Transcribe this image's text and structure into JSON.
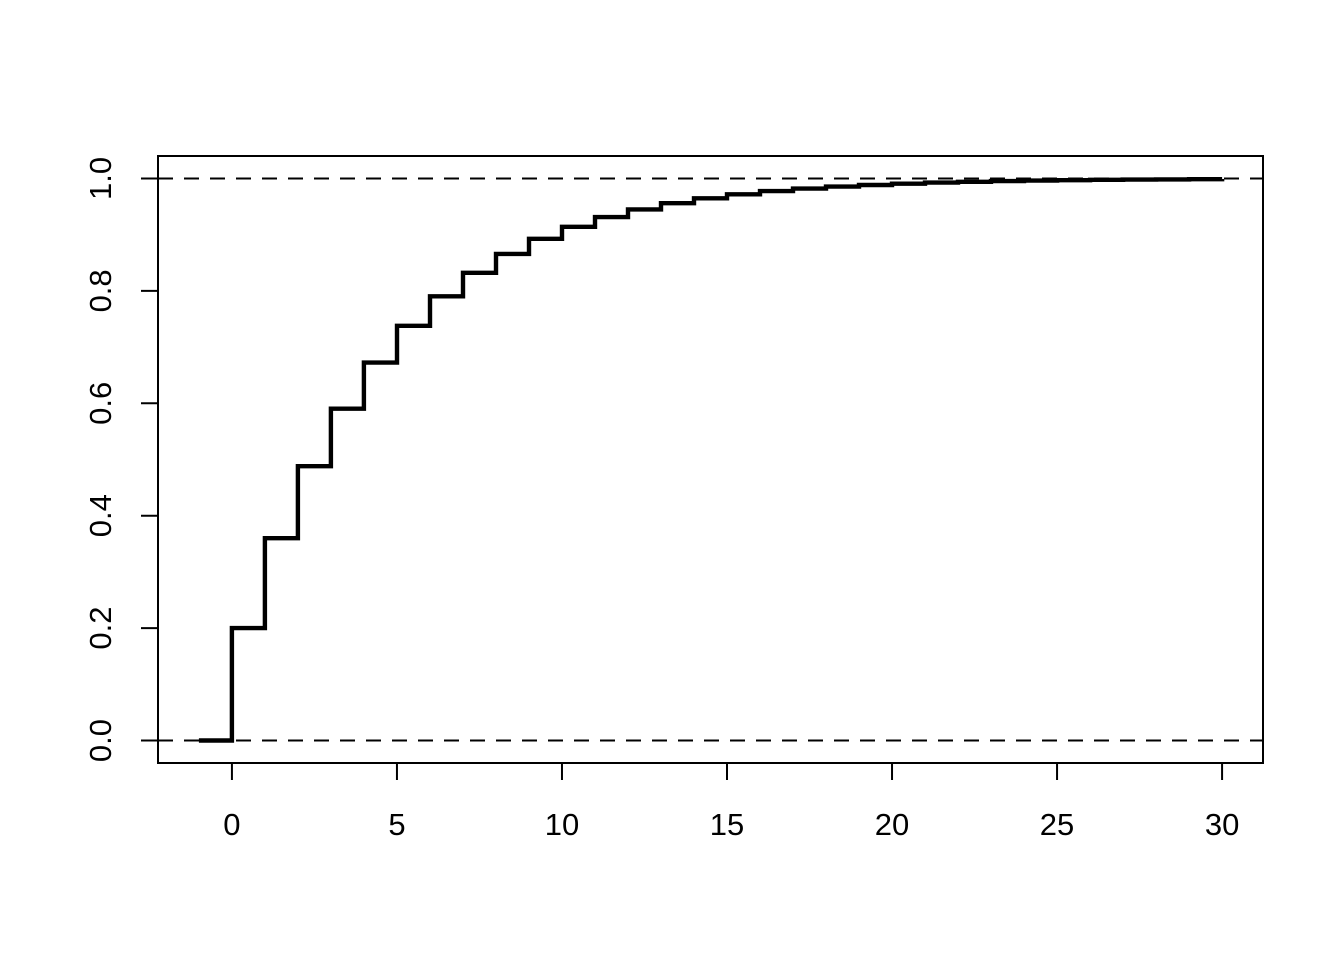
{
  "chart_data": {
    "type": "line",
    "subtype": "step_function_cdf",
    "description": "Step plot of a cumulative distribution function (geometric distribution, p = 0.2), R base graphics style",
    "title": "",
    "xlabel": "",
    "ylabel": "",
    "step_mode": "horizontal-then-vertical",
    "x": [
      -1,
      0,
      1,
      2,
      3,
      4,
      5,
      6,
      7,
      8,
      9,
      10,
      11,
      12,
      13,
      14,
      15,
      16,
      17,
      18,
      19,
      20,
      21,
      22,
      23,
      24,
      25,
      26,
      27,
      28,
      29,
      30
    ],
    "y": [
      0,
      0.2,
      0.36,
      0.488,
      0.5904,
      0.67232,
      0.737856,
      0.790285,
      0.832228,
      0.865782,
      0.892626,
      0.914101,
      0.931281,
      0.945024,
      0.95602,
      0.964816,
      0.971853,
      0.977482,
      0.981986,
      0.985588,
      0.988471,
      0.990777,
      0.992621,
      0.994097,
      0.995278,
      0.996222,
      0.996978,
      0.997582,
      0.998066,
      0.998453,
      0.998762,
      0.99901
    ],
    "xlim": [
      -2.24,
      31.24
    ],
    "ylim": [
      -0.04,
      1.04
    ],
    "x_ticks": {
      "values": [
        0,
        5,
        10,
        15,
        20,
        25,
        30
      ],
      "labels": [
        "0",
        "5",
        "10",
        "15",
        "20",
        "25",
        "30"
      ]
    },
    "y_ticks": {
      "values": [
        0,
        0.2,
        0.4,
        0.6,
        0.8,
        1
      ],
      "labels": [
        "0.0",
        "0.2",
        "0.4",
        "0.6",
        "0.8",
        "1.0"
      ]
    },
    "reference_lines": [
      {
        "y": 0,
        "style": "dashed"
      },
      {
        "y": 1,
        "style": "dashed"
      }
    ],
    "grid": false,
    "legend": null,
    "line_color": "#000000",
    "axis_color": "#000000",
    "background_color": "#ffffff"
  }
}
